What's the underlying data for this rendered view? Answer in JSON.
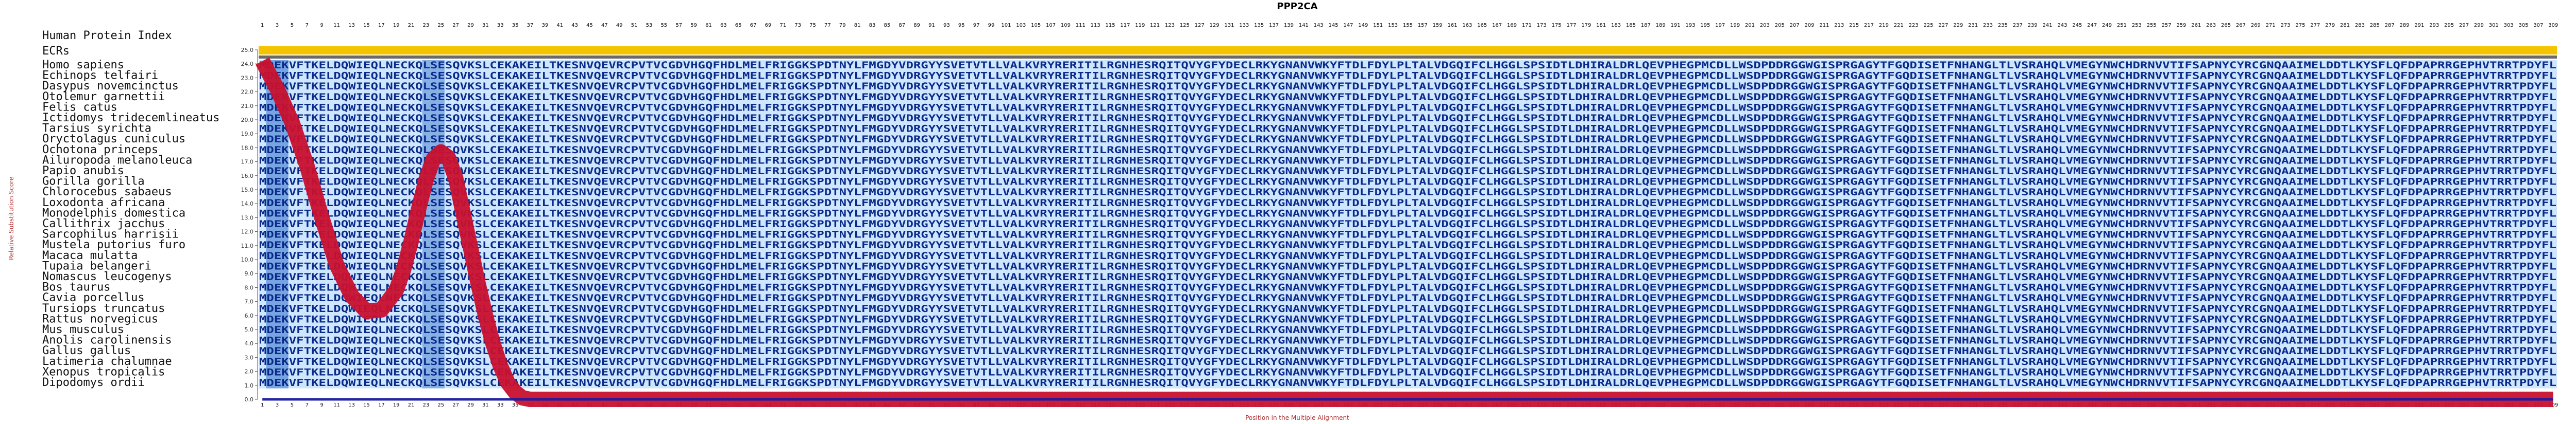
{
  "chart_data": {
    "type": "line",
    "title": "PPP2CA",
    "xlabel": "Position in the Multiple Alignment",
    "ylabel": "Relative Substitution Score",
    "xlim": [
      1,
      309
    ],
    "ylim": [
      0,
      25
    ],
    "y_ticks": [
      "0.0",
      "1.0",
      "2.0",
      "3.0",
      "4.0",
      "5.0",
      "6.0",
      "7.0",
      "8.0",
      "9.0",
      "10.0",
      "11.0",
      "12.0",
      "13.0",
      "14.0",
      "15.0",
      "16.0",
      "17.0",
      "18.0",
      "19.0",
      "20.0",
      "21.0",
      "22.0",
      "23.0",
      "24.0",
      "25.0"
    ],
    "rows_header": "Human Protein Index",
    "ecr_label": "ECRs",
    "ecr_color": "#f5c400",
    "species": [
      "Homo sapiens",
      "Echinops telfairi",
      "Dasypus novemcinctus",
      "Otolemur garnettii",
      "Felis catus",
      "Ictidomys tridecemlineatus",
      "Tarsius syrichta",
      "Oryctolagus cuniculus",
      "Ochotona princeps",
      "Ailuropoda melanoleuca",
      "Papio anubis",
      "Gorilla gorilla",
      "Chlorocebus sabaeus",
      "Loxodonta africana",
      "Monodelphis domestica",
      "Callithrix jacchus",
      "Sarcophilus harrisii",
      "Mustela putorius furo",
      "Macaca mulatta",
      "Tupaia belangeri",
      "Nomascus leucogenys",
      "Bos taurus",
      "Cavia porcellus",
      "Tursiops truncatus",
      "Rattus norvegicus",
      "Mus musculus",
      "Anolis carolinensis",
      "Gallus gallus",
      "Latimeria chalumnae",
      "Xenopus tropicalis",
      "Dipodomys ordii"
    ],
    "sequence": "MDEKVFTKELDQWIEQLNECKQLSESQVKSLCEKAKEILTKESNVQEVRCPVTVCGDVHGQFHDLMELFRIGGKSPDTNYLFMGDYVDRGYYSVETVTLLVALKVRYRERITILRGNHESRQITQVYGFYDECLRKYGNANVWKYFTDLFDYLPLTALVDGQIFCLHGGLSPSIDTLDHIRALDRLQEVPHEGPMCDLLWSDPDDRGGWGISPRGAGYTFGQDISETFNHANGLTLVSRAHQLVMEGYNWCHDRNVVTIFSAPNYCYRCGNQAAIMELDDTLKYSFLQFDPAPRRGEPHVTRRTPDYFL",
    "ecr_start": 1,
    "ecr_end": 309,
    "series": [
      {
        "x": [
          1,
          3,
          5,
          7,
          9,
          11,
          13,
          15,
          17,
          19,
          20,
          21,
          22,
          23,
          24,
          25,
          26,
          27,
          28,
          29,
          30,
          31,
          32,
          33,
          34,
          35,
          36,
          37,
          38,
          39,
          40,
          309
        ],
        "values": [
          24.2,
          22.2,
          19.8,
          16.7,
          13.0,
          9.6,
          7.4,
          6.3,
          6.4,
          7.8,
          9.3,
          11.3,
          13.6,
          15.7,
          17.2,
          17.7,
          17.3,
          15.8,
          13.3,
          10.8,
          8.3,
          6.0,
          4.0,
          2.4,
          1.2,
          0.5,
          0.1,
          0.0,
          0.0,
          0.0,
          0.0,
          0.0
        ]
      },
      {
        "x": [
          1,
          309
        ],
        "values": [
          0.0,
          0.0
        ]
      }
    ]
  }
}
